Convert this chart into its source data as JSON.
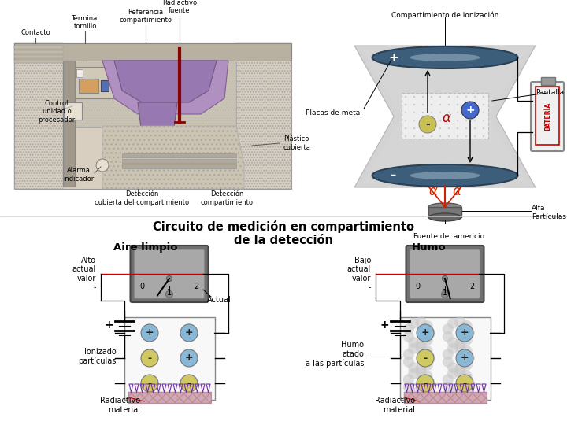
{
  "bg_color": "#ffffff",
  "title_bottom": "Circuito de medición en compartimiento\nde la detección",
  "label_aire": "Aire limpio",
  "label_humo": "Humo",
  "label_alto": "Alto\nactual\nvalor\n-",
  "label_bajo": "Bajo\nactual\nvalor\n-",
  "label_actual": "Actual",
  "label_ionizado": "Ionizado\npartículas",
  "label_humo_atado": "Humo\natado\na las partículas",
  "label_radio_l": "Radiactivo\nmaterial",
  "label_radio_r": "Radiactivo\nmaterial",
  "label_compartimiento": "Compartimiento de ionización",
  "label_pantalla": "Pantalla",
  "label_placas": "Placas de metal",
  "label_alfa": "Alfa\nPartículas",
  "label_fuente": "Fuente del americio",
  "label_contacto": "Contacto",
  "label_terminal": "Terminal\ntornillo",
  "label_referencia": "Referencia\ncompartimiento",
  "label_radiactivo_fuente": "Radiactivo\nfuente",
  "label_control": "Control\nunidad o\nprocesador",
  "label_alarma": "Alarma\nindicador",
  "label_deteccion1": "Detección\ncubierta del compartimiento",
  "label_deteccion2": "Detección\ncompartimiento",
  "label_plastico": "Plástico\ncubierta"
}
